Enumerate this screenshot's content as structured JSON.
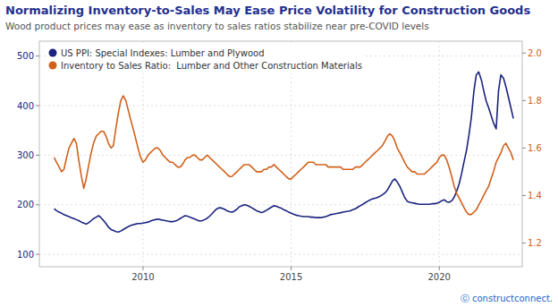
{
  "chart_data": {
    "type": "line",
    "title": "Normalizing Inventory-to-Sales May Ease Price Volatility for Construction Goods",
    "subtitle": "Wood product prices may ease as inventory to sales ratios stabilize near pre-COVID levels",
    "annotations": [
      "ⓒ constructconnect."
    ],
    "x": [
      2007.0,
      2007.08,
      2007.17,
      2007.25,
      2007.33,
      2007.42,
      2007.5,
      2007.58,
      2007.67,
      2007.75,
      2007.83,
      2007.92,
      2008.0,
      2008.08,
      2008.17,
      2008.25,
      2008.33,
      2008.42,
      2008.5,
      2008.58,
      2008.67,
      2008.75,
      2008.83,
      2008.92,
      2009.0,
      2009.08,
      2009.17,
      2009.25,
      2009.33,
      2009.42,
      2009.5,
      2009.58,
      2009.67,
      2009.75,
      2009.83,
      2009.92,
      2010.0,
      2010.08,
      2010.17,
      2010.25,
      2010.33,
      2010.42,
      2010.5,
      2010.58,
      2010.67,
      2010.75,
      2010.83,
      2010.92,
      2011.0,
      2011.08,
      2011.17,
      2011.25,
      2011.33,
      2011.42,
      2011.5,
      2011.58,
      2011.67,
      2011.75,
      2011.83,
      2011.92,
      2012.0,
      2012.08,
      2012.17,
      2012.25,
      2012.33,
      2012.42,
      2012.5,
      2012.58,
      2012.67,
      2012.75,
      2012.83,
      2012.92,
      2013.0,
      2013.08,
      2013.17,
      2013.25,
      2013.33,
      2013.42,
      2013.5,
      2013.58,
      2013.67,
      2013.75,
      2013.83,
      2013.92,
      2014.0,
      2014.08,
      2014.17,
      2014.25,
      2014.33,
      2014.42,
      2014.5,
      2014.58,
      2014.67,
      2014.75,
      2014.83,
      2014.92,
      2015.0,
      2015.08,
      2015.17,
      2015.25,
      2015.33,
      2015.42,
      2015.5,
      2015.58,
      2015.67,
      2015.75,
      2015.83,
      2015.92,
      2016.0,
      2016.08,
      2016.17,
      2016.25,
      2016.33,
      2016.42,
      2016.5,
      2016.58,
      2016.67,
      2016.75,
      2016.83,
      2016.92,
      2017.0,
      2017.08,
      2017.17,
      2017.25,
      2017.33,
      2017.42,
      2017.5,
      2017.58,
      2017.67,
      2017.75,
      2017.83,
      2017.92,
      2018.0,
      2018.08,
      2018.17,
      2018.25,
      2018.33,
      2018.42,
      2018.5,
      2018.58,
      2018.67,
      2018.75,
      2018.83,
      2018.92,
      2019.0,
      2019.08,
      2019.17,
      2019.25,
      2019.33,
      2019.42,
      2019.5,
      2019.58,
      2019.67,
      2019.75,
      2019.83,
      2019.92,
      2020.0,
      2020.08,
      2020.17,
      2020.25,
      2020.33,
      2020.42,
      2020.5,
      2020.58,
      2020.67,
      2020.75,
      2020.83,
      2020.92,
      2021.0,
      2021.08,
      2021.17,
      2021.25,
      2021.33,
      2021.42,
      2021.5,
      2021.58,
      2021.67,
      2021.75,
      2021.83,
      2021.92,
      2022.0,
      2022.08,
      2022.17,
      2022.25,
      2022.33,
      2022.42,
      2022.5
    ],
    "series": [
      {
        "name": "US PPI: Special Indexes: Lumber and Plywood",
        "color": "#1a237e",
        "values": [
          192,
          188,
          185,
          183,
          180,
          178,
          176,
          174,
          172,
          170,
          168,
          165,
          163,
          161,
          164,
          168,
          172,
          175,
          178,
          174,
          168,
          162,
          155,
          150,
          148,
          146,
          145,
          147,
          150,
          153,
          156,
          158,
          160,
          161,
          162,
          162,
          163,
          164,
          165,
          167,
          169,
          170,
          171,
          170,
          169,
          168,
          167,
          166,
          166,
          167,
          169,
          172,
          175,
          178,
          177,
          175,
          173,
          171,
          169,
          167,
          168,
          170,
          173,
          177,
          182,
          188,
          192,
          194,
          193,
          191,
          188,
          186,
          185,
          187,
          191,
          196,
          198,
          200,
          199,
          197,
          194,
          191,
          188,
          186,
          184,
          186,
          189,
          192,
          195,
          198,
          197,
          195,
          193,
          190,
          188,
          185,
          183,
          181,
          179,
          178,
          177,
          176,
          176,
          176,
          175,
          175,
          174,
          174,
          174,
          175,
          176,
          178,
          180,
          181,
          182,
          183,
          184,
          185,
          186,
          187,
          188,
          190,
          192,
          195,
          198,
          201,
          204,
          207,
          210,
          212,
          213,
          215,
          217,
          220,
          224,
          230,
          238,
          248,
          252,
          246,
          237,
          226,
          215,
          207,
          205,
          204,
          203,
          202,
          201,
          201,
          201,
          201,
          201,
          202,
          202,
          203,
          205,
          208,
          210,
          206,
          205,
          208,
          215,
          226,
          242,
          262,
          285,
          310,
          340,
          375,
          430,
          462,
          468,
          452,
          430,
          410,
          395,
          380,
          365,
          353,
          430,
          462,
          455,
          438,
          418,
          395,
          374
        ]
      },
      {
        "name": "Inventory to Sales Ratio:  Lumber and Other Construction Materials",
        "color": "#d2601a",
        "axis": "y2",
        "values": [
          1.56,
          1.54,
          1.52,
          1.5,
          1.51,
          1.56,
          1.6,
          1.62,
          1.64,
          1.62,
          1.55,
          1.48,
          1.43,
          1.47,
          1.53,
          1.58,
          1.62,
          1.65,
          1.66,
          1.67,
          1.67,
          1.65,
          1.62,
          1.6,
          1.61,
          1.68,
          1.75,
          1.8,
          1.82,
          1.8,
          1.76,
          1.72,
          1.68,
          1.64,
          1.6,
          1.56,
          1.54,
          1.55,
          1.57,
          1.58,
          1.59,
          1.6,
          1.6,
          1.59,
          1.57,
          1.56,
          1.55,
          1.54,
          1.54,
          1.53,
          1.52,
          1.52,
          1.53,
          1.55,
          1.56,
          1.56,
          1.57,
          1.57,
          1.56,
          1.55,
          1.55,
          1.56,
          1.57,
          1.56,
          1.55,
          1.54,
          1.53,
          1.52,
          1.51,
          1.5,
          1.49,
          1.48,
          1.48,
          1.49,
          1.5,
          1.51,
          1.52,
          1.53,
          1.53,
          1.53,
          1.52,
          1.51,
          1.5,
          1.5,
          1.5,
          1.51,
          1.51,
          1.52,
          1.52,
          1.53,
          1.52,
          1.51,
          1.5,
          1.49,
          1.48,
          1.47,
          1.47,
          1.48,
          1.49,
          1.5,
          1.51,
          1.52,
          1.53,
          1.54,
          1.54,
          1.54,
          1.53,
          1.53,
          1.53,
          1.53,
          1.53,
          1.52,
          1.52,
          1.52,
          1.52,
          1.52,
          1.52,
          1.51,
          1.51,
          1.51,
          1.51,
          1.51,
          1.52,
          1.52,
          1.52,
          1.53,
          1.54,
          1.55,
          1.56,
          1.57,
          1.58,
          1.59,
          1.6,
          1.61,
          1.63,
          1.65,
          1.66,
          1.65,
          1.63,
          1.6,
          1.58,
          1.56,
          1.54,
          1.52,
          1.51,
          1.5,
          1.5,
          1.49,
          1.49,
          1.49,
          1.49,
          1.5,
          1.51,
          1.52,
          1.53,
          1.54,
          1.56,
          1.57,
          1.57,
          1.55,
          1.52,
          1.48,
          1.44,
          1.41,
          1.39,
          1.37,
          1.35,
          1.33,
          1.32,
          1.32,
          1.33,
          1.34,
          1.36,
          1.38,
          1.4,
          1.42,
          1.44,
          1.47,
          1.5,
          1.54,
          1.56,
          1.58,
          1.61,
          1.62,
          1.6,
          1.58,
          1.55
        ]
      }
    ],
    "xlim": [
      2006.5,
      2022.8
    ],
    "xticks": [
      2010,
      2015,
      2020
    ],
    "ylim": [
      75,
      530
    ],
    "yticks": [
      100,
      200,
      300,
      400,
      500
    ],
    "y2lim": [
      1.1,
      2.05
    ],
    "y2ticks": [
      1.2,
      1.4,
      1.6,
      1.8,
      {
        "value": 2.0,
        "label": "2.0"
      }
    ],
    "grid": true,
    "legend": "upper left"
  }
}
